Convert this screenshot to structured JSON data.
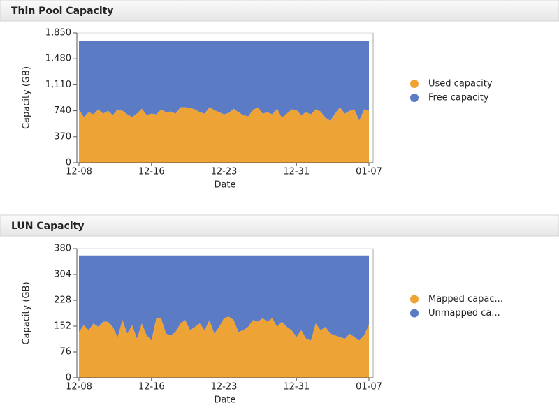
{
  "chart_data": [
    {
      "type": "area",
      "title": "Thin Pool Capacity",
      "x_label": "Date",
      "y_label": "Capacity (GB)",
      "categories": [
        "12-08",
        null,
        null,
        null,
        null,
        null,
        null,
        null,
        null,
        null,
        null,
        null,
        null,
        null,
        null,
        "12-16",
        null,
        null,
        null,
        null,
        null,
        null,
        null,
        null,
        null,
        null,
        null,
        null,
        null,
        null,
        "12-23",
        null,
        null,
        null,
        null,
        null,
        null,
        null,
        null,
        null,
        null,
        null,
        null,
        null,
        null,
        "12-31",
        null,
        null,
        null,
        null,
        null,
        null,
        null,
        null,
        null,
        null,
        null,
        null,
        null,
        null,
        "01-07"
      ],
      "series": [
        {
          "name": "Used capacity",
          "color": "#eea336",
          "values": [
            760,
            650,
            720,
            690,
            760,
            700,
            740,
            680,
            760,
            740,
            690,
            650,
            700,
            770,
            680,
            700,
            690,
            760,
            720,
            730,
            700,
            790,
            790,
            780,
            760,
            720,
            700,
            790,
            750,
            720,
            690,
            710,
            770,
            720,
            680,
            660,
            750,
            790,
            700,
            720,
            690,
            770,
            640,
            700,
            760,
            750,
            680,
            720,
            690,
            760,
            730,
            640,
            600,
            700,
            790,
            700,
            740,
            760,
            600,
            760,
            740
          ]
        },
        {
          "name": "Free capacity",
          "color": "#5b7bc4",
          "values": [
            980,
            1090,
            1020,
            1050,
            980,
            1040,
            1000,
            1060,
            980,
            1000,
            1050,
            1090,
            1040,
            970,
            1060,
            1040,
            1050,
            980,
            1020,
            1010,
            1040,
            950,
            950,
            960,
            980,
            1020,
            1040,
            950,
            990,
            1020,
            1050,
            1030,
            970,
            1020,
            1060,
            1080,
            990,
            950,
            1040,
            1020,
            1050,
            970,
            1100,
            1040,
            980,
            990,
            1060,
            1020,
            1050,
            980,
            1010,
            1100,
            1140,
            1040,
            950,
            1040,
            1000,
            980,
            1140,
            980,
            1000
          ]
        }
      ],
      "stacked": true,
      "ylim": [
        0,
        1850
      ],
      "yticks": [
        0,
        370,
        740,
        {
          "value": 1110,
          "label": "1,110"
        },
        {
          "value": 1480,
          "label": "1,480"
        },
        {
          "value": 1850,
          "label": "1,850"
        }
      ],
      "legend": "right"
    },
    {
      "type": "area",
      "title": "LUN Capacity",
      "x_label": "Date",
      "y_label": "Capacity (GB)",
      "categories": [
        "12-08",
        null,
        null,
        null,
        null,
        null,
        null,
        null,
        null,
        null,
        null,
        null,
        null,
        null,
        null,
        "12-16",
        null,
        null,
        null,
        null,
        null,
        null,
        null,
        null,
        null,
        null,
        null,
        null,
        null,
        null,
        "12-23",
        null,
        null,
        null,
        null,
        null,
        null,
        null,
        null,
        null,
        null,
        null,
        null,
        null,
        null,
        "12-31",
        null,
        null,
        null,
        null,
        null,
        null,
        null,
        null,
        null,
        null,
        null,
        null,
        null,
        null,
        "01-07"
      ],
      "series": [
        {
          "name": "Mapped capac...",
          "color": "#eea336",
          "values": [
            135,
            155,
            140,
            160,
            150,
            165,
            165,
            150,
            120,
            170,
            130,
            155,
            115,
            160,
            125,
            110,
            175,
            175,
            130,
            125,
            135,
            160,
            170,
            140,
            150,
            160,
            140,
            170,
            130,
            150,
            175,
            180,
            170,
            135,
            140,
            150,
            170,
            165,
            175,
            165,
            175,
            150,
            165,
            150,
            140,
            120,
            140,
            115,
            110,
            160,
            140,
            150,
            130,
            125,
            120,
            115,
            130,
            120,
            110,
            125,
            155
          ]
        },
        {
          "name": "Unmapped ca...",
          "color": "#5b7bc4",
          "values": [
            225,
            205,
            220,
            200,
            210,
            195,
            195,
            210,
            240,
            190,
            230,
            205,
            245,
            200,
            235,
            250,
            185,
            185,
            230,
            235,
            225,
            200,
            190,
            220,
            210,
            200,
            220,
            190,
            230,
            210,
            185,
            180,
            190,
            225,
            220,
            210,
            190,
            195,
            185,
            195,
            185,
            210,
            195,
            210,
            220,
            240,
            220,
            245,
            250,
            200,
            220,
            210,
            230,
            235,
            240,
            245,
            230,
            240,
            250,
            235,
            205
          ]
        }
      ],
      "stacked": true,
      "ylim": [
        0,
        380
      ],
      "yticks": [
        0,
        76,
        152,
        228,
        304,
        380
      ],
      "legend": "right"
    }
  ]
}
